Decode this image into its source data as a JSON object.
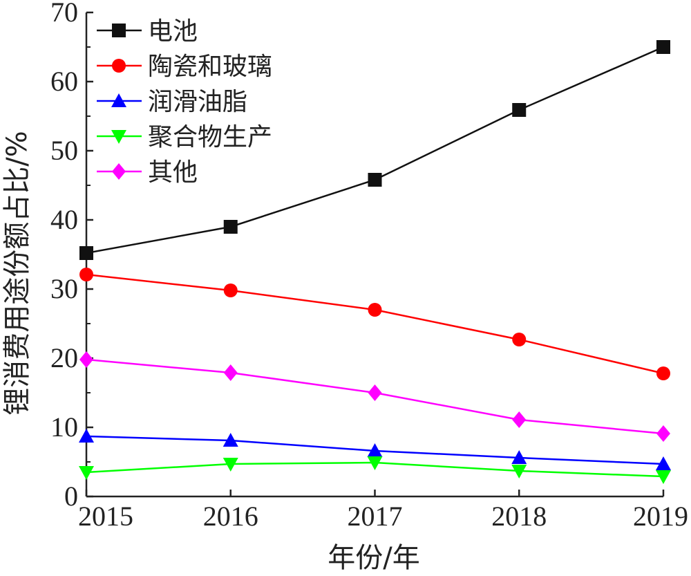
{
  "chart_data": {
    "type": "line",
    "title": "",
    "xlabel": "年份/年",
    "ylabel": "锂消费用途份额占比/%",
    "x": [
      "2015",
      "2016",
      "2017",
      "2018",
      "2019"
    ],
    "ylim": [
      0,
      70
    ],
    "yticks": [
      "0",
      "10",
      "20",
      "30",
      "40",
      "50",
      "60",
      "70"
    ],
    "grid": false,
    "legend_position": "top-left",
    "series": [
      {
        "name": "电池",
        "values": [
          35.2,
          39.0,
          45.8,
          55.9,
          65.0
        ],
        "color": "#111111",
        "marker": "square"
      },
      {
        "name": "陶瓷和玻璃",
        "values": [
          32.1,
          29.8,
          27.0,
          22.7,
          17.8
        ],
        "color": "#ff0000",
        "marker": "circle"
      },
      {
        "name": "润滑油脂",
        "values": [
          8.7,
          8.1,
          6.6,
          5.6,
          4.7
        ],
        "color": "#0000ff",
        "marker": "triangle-up"
      },
      {
        "name": "聚合物生产",
        "values": [
          3.5,
          4.7,
          4.9,
          3.7,
          2.9
        ],
        "color": "#00ff00",
        "marker": "triangle-down"
      },
      {
        "name": "其他",
        "values": [
          19.8,
          17.9,
          15.0,
          11.1,
          9.1
        ],
        "color": "#ff00ff",
        "marker": "diamond"
      }
    ]
  }
}
